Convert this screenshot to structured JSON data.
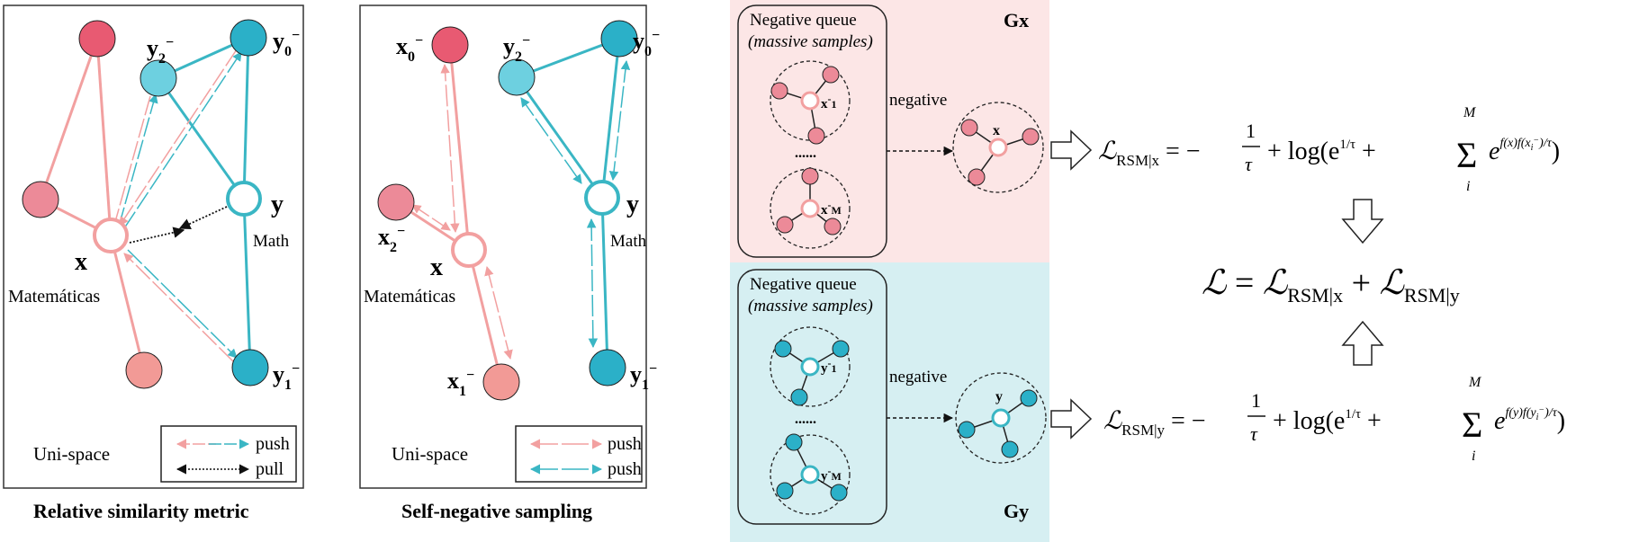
{
  "panel1": {
    "caption": "Relative similarity metric",
    "space_label": "Uni-space",
    "anchor_x": "x",
    "anchor_x_word": "Matemáticas",
    "anchor_y": "y",
    "anchor_y_word": "Math",
    "legend": {
      "push": "push",
      "pull": "pull"
    }
  },
  "panel2": {
    "caption": "Self-negative sampling",
    "space_label": "Uni-space",
    "anchor_x": "x",
    "anchor_x_word": "Matemáticas",
    "anchor_y": "y",
    "anchor_y_word": "Math",
    "legend": {
      "push_red": "push",
      "push_teal": "push"
    }
  },
  "queue_gx": {
    "corner_label": "Gx",
    "box_title": "Negative queue",
    "box_subtitle": "(massive samples)",
    "arrow_label": "negative",
    "center_label": "x",
    "ellipsis": "......"
  },
  "queue_gy": {
    "corner_label": "Gy",
    "box_title": "Negative queue",
    "box_subtitle": "(massive samples)",
    "arrow_label": "negative",
    "center_label": "y",
    "ellipsis": "......"
  },
  "equations": {
    "eq_x": "ℒ_RSM|x = −1/τ + log(e^{1/τ} + Σ_i^M e^{f(x)f(x_i⁻)/τ})",
    "eq_total": "ℒ = ℒ_RSM|x + ℒ_RSM|y",
    "eq_y": "ℒ_RSM|y = −1/τ + log(e^{1/τ} + Σ_i^M e^{f(y)f(y_i⁻)/τ})"
  },
  "colors": {
    "red_node": "#e85a72",
    "pink_node": "#ec8a98",
    "salmon_node": "#f29a96",
    "teal_node": "#2bb0c8",
    "light_teal_node": "#6dd0e0",
    "red_edge": "#f2a0a0",
    "teal_edge": "#3ab6c4",
    "gx_bg": "#fce6e6",
    "gy_bg": "#d6eff2"
  }
}
